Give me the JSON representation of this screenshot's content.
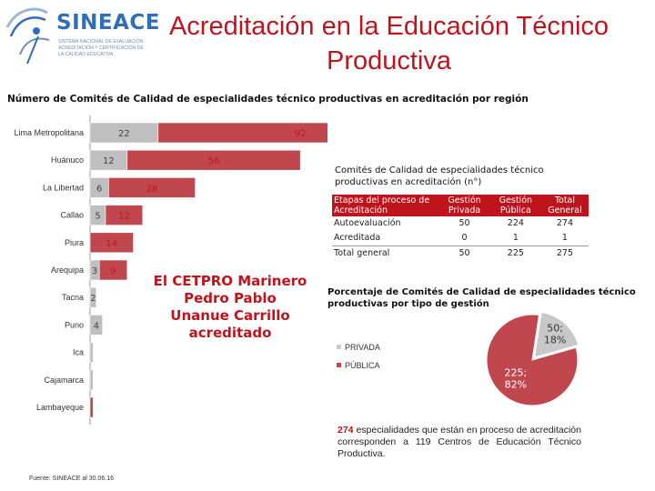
{
  "logo": {
    "word": "SINEACE",
    "tagline": "SISTEMA NACIONAL DE EVALUACIÓN, ACREDITACIÓN Y CERTIFICACIÓN DE LA CALIDAD EDUCATIVA"
  },
  "header": {
    "title": "Acreditación en la Educación Técnico Productiva",
    "subtitle": "Número de Comités de Calidad de especialidades técnico productivas en acreditación por región"
  },
  "callout": "El CETPRO Marinero Pedro Pablo Unanue Carrillo acreditado",
  "source": "Fuente: SINEACE al 30.06.16",
  "colors": {
    "primary": "#c0141c",
    "bar_red": "#c0474e",
    "bar_gray": "#bfbfbf",
    "pie_gray": "#c8c8c8"
  },
  "chart_data": [
    {
      "type": "bar",
      "orientation": "horizontal",
      "stacked": true,
      "categories": [
        "Lima Metropolitana",
        "Huánuco",
        "La Libertad",
        "Callao",
        "Piura",
        "Arequipa",
        "Tacna",
        "Puno",
        "Ica",
        "Cajamarca",
        "Lambayeque"
      ],
      "series": [
        {
          "values": [
            22,
            12,
            6,
            5,
            0,
            3,
            2,
            4,
            1,
            1,
            0
          ],
          "labels": [
            "22",
            "12",
            "6",
            "5",
            "",
            "3",
            "2",
            "4",
            "",
            "",
            ""
          ]
        },
        {
          "values": [
            92,
            56,
            28,
            12,
            14,
            9,
            0,
            0,
            0,
            0,
            1
          ],
          "labels": [
            "92",
            "56",
            "28",
            "12",
            "14",
            "9",
            "",
            "",
            "",
            "",
            ""
          ]
        }
      ],
      "xlim": [
        0,
        115
      ]
    },
    {
      "type": "pie",
      "title": "Porcentaje de Comités de Calidad de especialidades técnico productivas por tipo de gestión",
      "categories": [
        "PRIVADA",
        "PÚBLICA"
      ],
      "values": [
        50,
        225
      ],
      "percents": [
        18,
        82
      ],
      "labels": [
        "50; 18%",
        "225; 82%"
      ]
    }
  ],
  "table": {
    "title": "Comités de Calidad de especialidades técnico productivas en acreditación (n°)",
    "headers": [
      "Etapas del proceso de Acreditación",
      "Gestión Privada",
      "Gestión Pública",
      "Total General"
    ],
    "rows": [
      [
        "Autoevaluación",
        "50",
        "224",
        "274"
      ],
      [
        "Acreditada",
        "0",
        "1",
        "1"
      ]
    ],
    "total": [
      "Total general",
      "50",
      "225",
      "275"
    ]
  },
  "note": {
    "number": "274",
    "text": "especialidades que están en proceso de acreditación corresponden a 119 Centros de Educación Técnico Productiva."
  }
}
